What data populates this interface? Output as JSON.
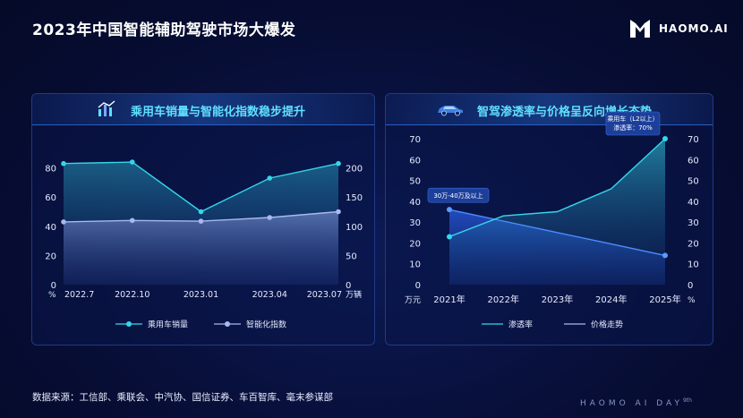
{
  "page": {
    "title": "2023年中国智能辅助驾驶市场大爆发",
    "logo_text": "HAOMO.AI",
    "source": "数据来源：工信部、乘联会、中汽协、国信证券、车百智库、毫末参谋部",
    "footer_brand": "HAOMO AI DAY",
    "footer_edition": "9th"
  },
  "chart_data": [
    {
      "type": "line",
      "title": "乘用车销量与智能化指数稳步提升",
      "categories": [
        "2022.7",
        "2022.10",
        "2023.01",
        "2023.04",
        "2023.07"
      ],
      "left_axis": {
        "unit": "%",
        "ticks": [
          "0",
          "20",
          "40",
          "60",
          "80"
        ],
        "range": [
          0,
          100
        ]
      },
      "right_axis": {
        "unit": "万辆",
        "ticks": [
          "0",
          "50",
          "100",
          "150",
          "200"
        ],
        "range": [
          0,
          250
        ]
      },
      "series": [
        {
          "name": "乘用车销量",
          "axis": "left",
          "values": [
            83,
            84,
            50,
            73,
            83
          ],
          "color": "#35d6ea"
        },
        {
          "name": "智能化指数",
          "axis": "left",
          "values": [
            43,
            44,
            43.5,
            46,
            50
          ],
          "color": "#a9b8f0"
        }
      ],
      "legend_position": "bottom"
    },
    {
      "type": "line",
      "title": "智驾渗透率与价格呈反向增长态势",
      "categories": [
        "2021年",
        "2022年",
        "2023年",
        "2024年",
        "2025年"
      ],
      "left_axis": {
        "unit": "万元",
        "ticks": [
          "0",
          "10",
          "20",
          "30",
          "40",
          "50",
          "60",
          "70"
        ],
        "range": [
          0,
          75
        ]
      },
      "right_axis": {
        "unit": "%",
        "ticks": [
          "0",
          "10",
          "20",
          "30",
          "40",
          "50",
          "60",
          "70"
        ],
        "range": [
          0,
          75
        ]
      },
      "series": [
        {
          "name": "渗透率",
          "values": [
            23,
            33,
            35,
            46,
            70
          ],
          "color": "#35d6ea"
        },
        {
          "name": "价格走势",
          "values": [
            36,
            30.5,
            25,
            19.5,
            14
          ],
          "color": "#4d8cff"
        }
      ],
      "annotations": [
        {
          "text": "30万-40万及以上",
          "series": "价格走势",
          "point_index": 0
        },
        {
          "lines": [
            "乘用车（L2以上）",
            "渗透率：70%"
          ],
          "series": "渗透率",
          "point_index": 4
        }
      ],
      "legend_position": "bottom"
    }
  ]
}
